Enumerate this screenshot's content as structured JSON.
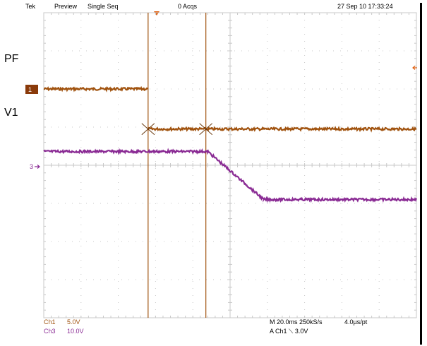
{
  "header": {
    "brand": "Tek",
    "mode": "Preview",
    "acq_mode": "Single Seq",
    "acq_count": "0 Acqs",
    "timestamp": "27 Sep 10 17:33:24"
  },
  "side_labels": {
    "pf": "PF",
    "v1": "V1"
  },
  "markers": {
    "ch1": "1",
    "ch3": "3"
  },
  "bottom": {
    "ch1_name": "Ch1",
    "ch1_scale": "5.0V",
    "ch3_name": "Ch3",
    "ch3_scale": "10.0V",
    "timebase": "M 20.0ms 250kS/s",
    "record": "4.0µs/pt",
    "trigger": "A  Ch1  ⟍  3.0V"
  },
  "colors": {
    "ch1": "#a0520e",
    "ch3": "#8a2b94",
    "grid": "#c8c8c8",
    "marker_bg": "#8a3a0a",
    "trigger": "#e06010"
  },
  "chart_data": {
    "type": "line",
    "title": "",
    "xlabel": "",
    "ylabel": "",
    "xlim": [
      -100,
      100
    ],
    "ylim": [
      -4,
      4
    ],
    "x_unit": "ms",
    "y_unit": "div",
    "grid": true,
    "cursors_x": [
      -44,
      -13
    ],
    "series": [
      {
        "name": "Ch1",
        "color": "#a0520e",
        "points": [
          [
            -100,
            2.0
          ],
          [
            -44,
            2.0
          ],
          [
            -44,
            0.95
          ],
          [
            -100,
            0.95
          ],
          [
            -44,
            0.95
          ],
          [
            100,
            0.95
          ]
        ],
        "segments": [
          [
            [
              -100,
              2.0
            ],
            [
              -44,
              2.0
            ]
          ],
          [
            [
              -44,
              0.95
            ],
            [
              100,
              0.95
            ]
          ]
        ]
      },
      {
        "name": "Ch3",
        "color": "#8a2b94",
        "segments": [
          [
            [
              -100,
              0.36
            ],
            [
              -12,
              0.36
            ],
            [
              18,
              -0.9
            ],
            [
              100,
              -0.9
            ]
          ]
        ]
      }
    ]
  }
}
